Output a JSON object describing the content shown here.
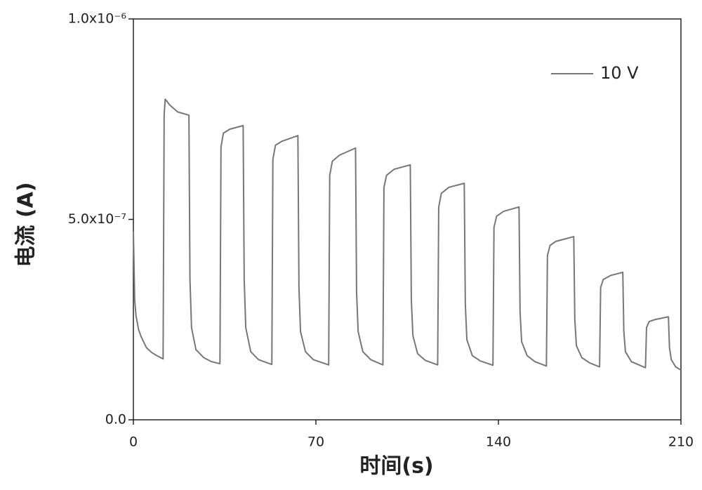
{
  "chart_data": {
    "type": "line",
    "x_label": "时间(s)",
    "y_label": "电流 (A)",
    "x": [
      0,
      0.5,
      1,
      2,
      3,
      5,
      7,
      9,
      11.4,
      11.8,
      12.2,
      14,
      17,
      21.3,
      21.7,
      22.3,
      24,
      27,
      30,
      33.2,
      33.6,
      34.5,
      37,
      42.1,
      42.5,
      43.1,
      45,
      48,
      53.1,
      53.5,
      54.5,
      57,
      63.1,
      63.5,
      64.1,
      66,
      69,
      74.9,
      75.3,
      76.3,
      79,
      85.2,
      85.6,
      86.2,
      88,
      91,
      95.7,
      96.1,
      97.1,
      100,
      106.2,
      106.6,
      107.2,
      109,
      112,
      116.7,
      117.1,
      118.1,
      121,
      126.9,
      127.3,
      127.9,
      130,
      133,
      137.9,
      138.3,
      139.3,
      142,
      147.9,
      148.3,
      148.9,
      151,
      154,
      158.4,
      158.8,
      159.8,
      162,
      168.9,
      169.3,
      169.9,
      172,
      175,
      178.8,
      179.2,
      180.2,
      183,
      187.7,
      188.1,
      188.7,
      191,
      196.4,
      196.8,
      197.8,
      200,
      205.2,
      205.6,
      206.3,
      208,
      210
    ],
    "series": [
      {
        "name": "10 V",
        "color": "#777777",
        "values": [
          4.7e-07,
          3e-07,
          2.6e-07,
          2.25e-07,
          2.07e-07,
          1.8e-07,
          1.68e-07,
          1.6e-07,
          1.52e-07,
          7.6e-07,
          8e-07,
          7.85e-07,
          7.68e-07,
          7.6e-07,
          3.5e-07,
          2.3e-07,
          1.75e-07,
          1.55e-07,
          1.45e-07,
          1.4e-07,
          6.8e-07,
          7.15e-07,
          7.25e-07,
          7.34e-07,
          3.5e-07,
          2.3e-07,
          1.7e-07,
          1.5e-07,
          1.38e-07,
          6.5e-07,
          6.85e-07,
          6.95e-07,
          7.09e-07,
          3.3e-07,
          2.2e-07,
          1.7e-07,
          1.5e-07,
          1.37e-07,
          6.1e-07,
          6.45e-07,
          6.6e-07,
          6.78e-07,
          3.2e-07,
          2.2e-07,
          1.7e-07,
          1.5e-07,
          1.37e-07,
          5.8e-07,
          6.1e-07,
          6.25e-07,
          6.36e-07,
          3e-07,
          2.1e-07,
          1.65e-07,
          1.48e-07,
          1.37e-07,
          5.3e-07,
          5.65e-07,
          5.8e-07,
          5.9e-07,
          2.9e-07,
          2e-07,
          1.6e-07,
          1.47e-07,
          1.36e-07,
          4.8e-07,
          5.08e-07,
          5.2e-07,
          5.31e-07,
          2.7e-07,
          1.95e-07,
          1.6e-07,
          1.45e-07,
          1.34e-07,
          4.1e-07,
          4.35e-07,
          4.45e-07,
          4.57e-07,
          2.5e-07,
          1.85e-07,
          1.55e-07,
          1.42e-07,
          1.32e-07,
          3.3e-07,
          3.5e-07,
          3.6e-07,
          3.68e-07,
          2.2e-07,
          1.7e-07,
          1.45e-07,
          1.3e-07,
          2.3e-07,
          2.45e-07,
          2.5e-07,
          2.57e-07,
          1.8e-07,
          1.5e-07,
          1.32e-07,
          1.24e-07
        ]
      }
    ],
    "xlim": [
      0,
      210
    ],
    "xticks": [
      0,
      70,
      140,
      210
    ],
    "ylim": [
      0,
      1e-06
    ],
    "yticks": [
      {
        "value": 0,
        "label": "0.0"
      },
      {
        "value": 5e-07,
        "label": "5.0x10⁻⁷"
      },
      {
        "value": 1e-06,
        "label": "1.0x10⁻⁶"
      }
    ],
    "legend": "upper right"
  }
}
